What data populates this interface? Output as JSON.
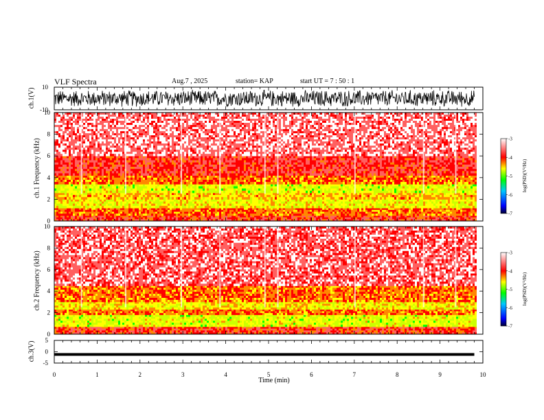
{
  "header": {
    "title": "VLF Spectra",
    "date": "Aug.7 , 2025",
    "station": "station= KAP",
    "start": "start UT = 7 : 50 : 1"
  },
  "colorbar": {
    "label": "log(PSD)(V²/Hz)",
    "ticks": [
      "-3",
      "-4",
      "-5",
      "-6",
      "-7"
    ],
    "colors": [
      "#000000",
      "#0000ff",
      "#00c8ff",
      "#00ff00",
      "#ffff00",
      "#ff0000",
      "#ffffff"
    ]
  },
  "chart_data": [
    {
      "type": "line",
      "panel": "ch1-waveform",
      "ylabel": "ch.1(V)",
      "ylim": [
        -10,
        10
      ],
      "yticks": [
        "10",
        "-10"
      ],
      "xlim": [
        0,
        10
      ],
      "trace": "dense dark signal, about -8 V to 8 V across 0–9.8 min",
      "x_data_end": 9.8
    },
    {
      "type": "heatmap",
      "panel": "ch1-spectrogram",
      "ylabel": "ch.1 Frequency (kHz)",
      "ylim": [
        0,
        10
      ],
      "yticks": [
        "0",
        "2",
        "4",
        "6",
        "8",
        "10"
      ],
      "xlim": [
        0,
        10
      ],
      "color_scale": [
        -7,
        -3
      ],
      "bands_khz": [
        {
          "from": 0,
          "to": 0.5,
          "level": -4.0
        },
        {
          "from": 0.5,
          "to": 1.2,
          "level": -4.3
        },
        {
          "from": 1.2,
          "to": 2.0,
          "level": -4.9
        },
        {
          "from": 2.0,
          "to": 2.6,
          "level": -4.6
        },
        {
          "from": 2.6,
          "to": 3.4,
          "level": -5.0
        },
        {
          "from": 3.4,
          "to": 4.2,
          "level": -4.3
        },
        {
          "from": 4.2,
          "to": 6.0,
          "level": -3.9
        },
        {
          "from": 6.0,
          "to": 10,
          "level": -3.5
        }
      ]
    },
    {
      "type": "heatmap",
      "panel": "ch2-spectrogram",
      "ylabel": "ch.2 Frequency (kHz)",
      "ylim": [
        0,
        10
      ],
      "yticks": [
        "0",
        "2",
        "4",
        "6",
        "8",
        "10"
      ],
      "xlim": [
        0,
        10
      ],
      "color_scale": [
        -7,
        -3
      ],
      "bands_khz": [
        {
          "from": 0,
          "to": 0.7,
          "level": -4.0
        },
        {
          "from": 0.7,
          "to": 1.8,
          "level": -5.0
        },
        {
          "from": 1.8,
          "to": 2.3,
          "level": -4.3
        },
        {
          "from": 2.3,
          "to": 3.0,
          "level": -4.8
        },
        {
          "from": 3.0,
          "to": 4.5,
          "level": -4.3
        },
        {
          "from": 4.5,
          "to": 10,
          "level": -3.6
        }
      ]
    },
    {
      "type": "line",
      "panel": "ch3-waveform",
      "ylabel": "ch.3(V)",
      "ylim": [
        -5,
        5
      ],
      "yticks": [
        "5",
        "0",
        "-5"
      ],
      "xlim": [
        0,
        10
      ],
      "trace": "flat band near -0.8 V to -1.6 V",
      "x_data_end": 9.8
    }
  ],
  "xaxis": {
    "label": "Time (min)",
    "ticks": [
      "0",
      "1",
      "2",
      "3",
      "4",
      "5",
      "6",
      "7",
      "8",
      "9",
      "10"
    ]
  }
}
